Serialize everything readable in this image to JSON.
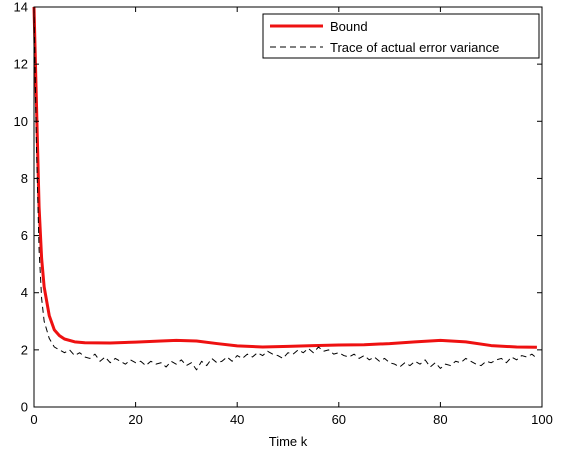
{
  "chart_data": {
    "type": "line",
    "title": "",
    "xlabel": "Time k",
    "ylabel": "",
    "xlim": [
      0,
      100
    ],
    "ylim": [
      0,
      14
    ],
    "xticks": [
      0,
      20,
      40,
      60,
      80,
      100
    ],
    "yticks": [
      0,
      2,
      4,
      6,
      8,
      10,
      12,
      14
    ],
    "grid": false,
    "legend_position": "top-right",
    "series": [
      {
        "name": "Bound",
        "color": "#ee1111",
        "style": "solid",
        "x": [
          0,
          0.5,
          1,
          1.5,
          2,
          3,
          4,
          5,
          6,
          8,
          10,
          15,
          20,
          25,
          28,
          32,
          36,
          40,
          45,
          50,
          55,
          60,
          65,
          70,
          75,
          80,
          85,
          90,
          95,
          99
        ],
        "y": [
          14,
          10.5,
          7.0,
          5.2,
          4.2,
          3.2,
          2.7,
          2.5,
          2.38,
          2.28,
          2.25,
          2.24,
          2.27,
          2.31,
          2.33,
          2.31,
          2.22,
          2.14,
          2.1,
          2.12,
          2.15,
          2.17,
          2.18,
          2.22,
          2.28,
          2.33,
          2.28,
          2.15,
          2.1,
          2.09
        ]
      },
      {
        "name": "Trace of actual error variance",
        "color": "#000000",
        "style": "dashed",
        "x": [
          0,
          0.5,
          1,
          1.5,
          2,
          3,
          4,
          5,
          6,
          7,
          8,
          9,
          10,
          11,
          12,
          13,
          14,
          15,
          16,
          17,
          18,
          19,
          20,
          21,
          22,
          23,
          24,
          25,
          26,
          27,
          28,
          29,
          30,
          31,
          32,
          33,
          34,
          35,
          36,
          37,
          38,
          39,
          40,
          41,
          42,
          43,
          44,
          45,
          46,
          47,
          48,
          49,
          50,
          51,
          52,
          53,
          54,
          55,
          56,
          57,
          58,
          59,
          60,
          61,
          62,
          63,
          64,
          65,
          66,
          67,
          68,
          69,
          70,
          71,
          72,
          73,
          74,
          75,
          76,
          77,
          78,
          79,
          80,
          81,
          82,
          83,
          84,
          85,
          86,
          87,
          88,
          89,
          90,
          91,
          92,
          93,
          94,
          95,
          96,
          97,
          98,
          99
        ],
        "y": [
          14,
          9.0,
          5.5,
          3.8,
          3.0,
          2.4,
          2.1,
          2.0,
          1.9,
          2.0,
          1.8,
          1.9,
          1.75,
          1.7,
          1.85,
          1.6,
          1.75,
          1.55,
          1.7,
          1.6,
          1.5,
          1.65,
          1.55,
          1.6,
          1.45,
          1.6,
          1.5,
          1.55,
          1.4,
          1.6,
          1.5,
          1.65,
          1.45,
          1.55,
          1.3,
          1.6,
          1.45,
          1.7,
          1.55,
          1.6,
          1.75,
          1.6,
          1.8,
          1.7,
          1.85,
          1.75,
          1.9,
          1.8,
          1.95,
          1.85,
          1.8,
          1.7,
          1.9,
          1.85,
          2.0,
          1.9,
          2.05,
          1.9,
          2.1,
          1.95,
          2.0,
          1.85,
          1.9,
          1.8,
          1.75,
          1.85,
          1.7,
          1.8,
          1.65,
          1.75,
          1.6,
          1.7,
          1.55,
          1.5,
          1.4,
          1.55,
          1.45,
          1.6,
          1.5,
          1.65,
          1.4,
          1.55,
          1.35,
          1.5,
          1.45,
          1.6,
          1.55,
          1.7,
          1.6,
          1.5,
          1.45,
          1.6,
          1.55,
          1.65,
          1.7,
          1.55,
          1.75,
          1.65,
          1.8,
          1.75,
          1.85,
          1.7
        ]
      }
    ]
  }
}
